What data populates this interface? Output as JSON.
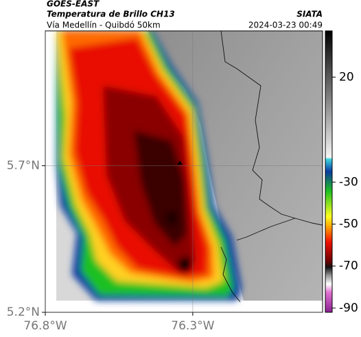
{
  "header": {
    "satellite": "GOES-EAST",
    "title": "Temperatura de Brillo CH13",
    "subtitle": "Vía Medellín - Quibdó 50km",
    "source": "SIATA",
    "datetime": "2024-03-23 00:49"
  },
  "map": {
    "lat_lim": [
      5.2,
      6.16
    ],
    "lon_lim": [
      -76.8,
      -75.86
    ],
    "lat_ticks": [
      {
        "value": 5.7,
        "label": "5.7°N"
      },
      {
        "value": 5.2,
        "label": "5.2°N"
      }
    ],
    "lon_ticks": [
      {
        "value": -76.8,
        "label": "76.8°W"
      },
      {
        "value": -76.3,
        "label": "76.3°W"
      }
    ],
    "grid": true
  },
  "colorbar": {
    "lim": [
      -92,
      42
    ],
    "ticks": [
      20,
      -30,
      -50,
      -70,
      -90
    ]
  }
}
